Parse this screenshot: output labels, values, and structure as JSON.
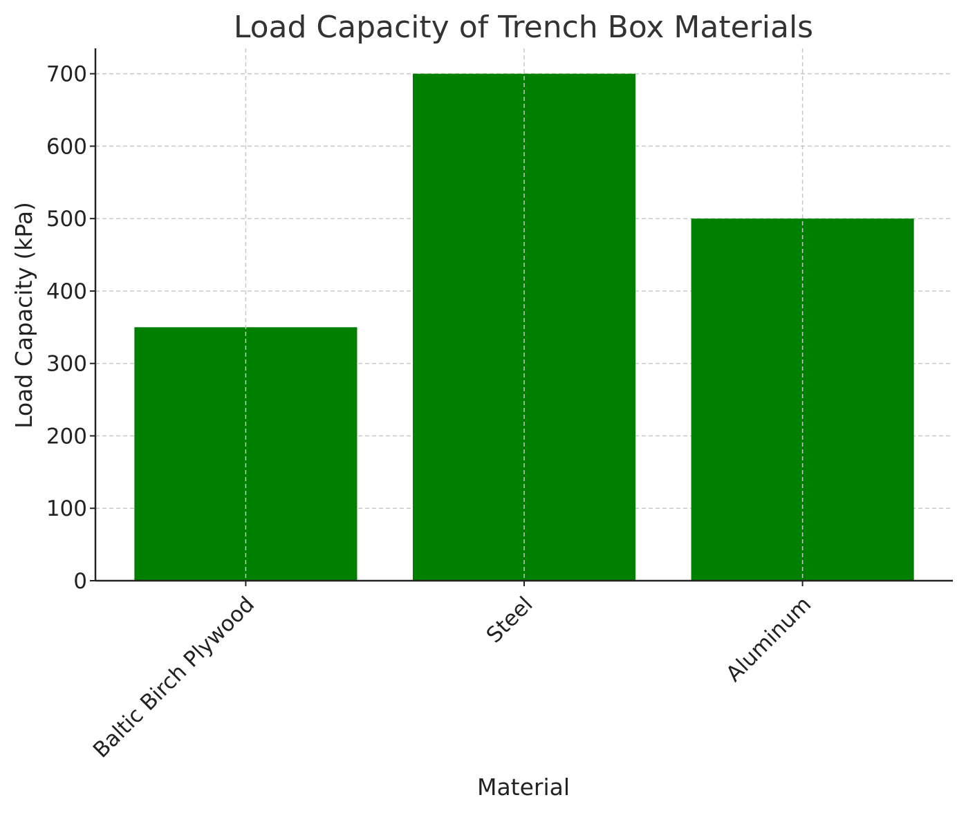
{
  "chart_data": {
    "type": "bar",
    "title": "Load Capacity of Trench Box Materials",
    "xlabel": "Material",
    "ylabel": "Load Capacity (kPa)",
    "categories": [
      "Baltic Birch Plywood",
      "Steel",
      "Aluminum"
    ],
    "values": [
      350,
      700,
      500
    ],
    "ylim": [
      0,
      735
    ],
    "yticks": [
      0,
      100,
      200,
      300,
      400,
      500,
      600,
      700
    ],
    "grid": true,
    "bar_color": "#008000",
    "grid_color": "#c8c8c8"
  }
}
